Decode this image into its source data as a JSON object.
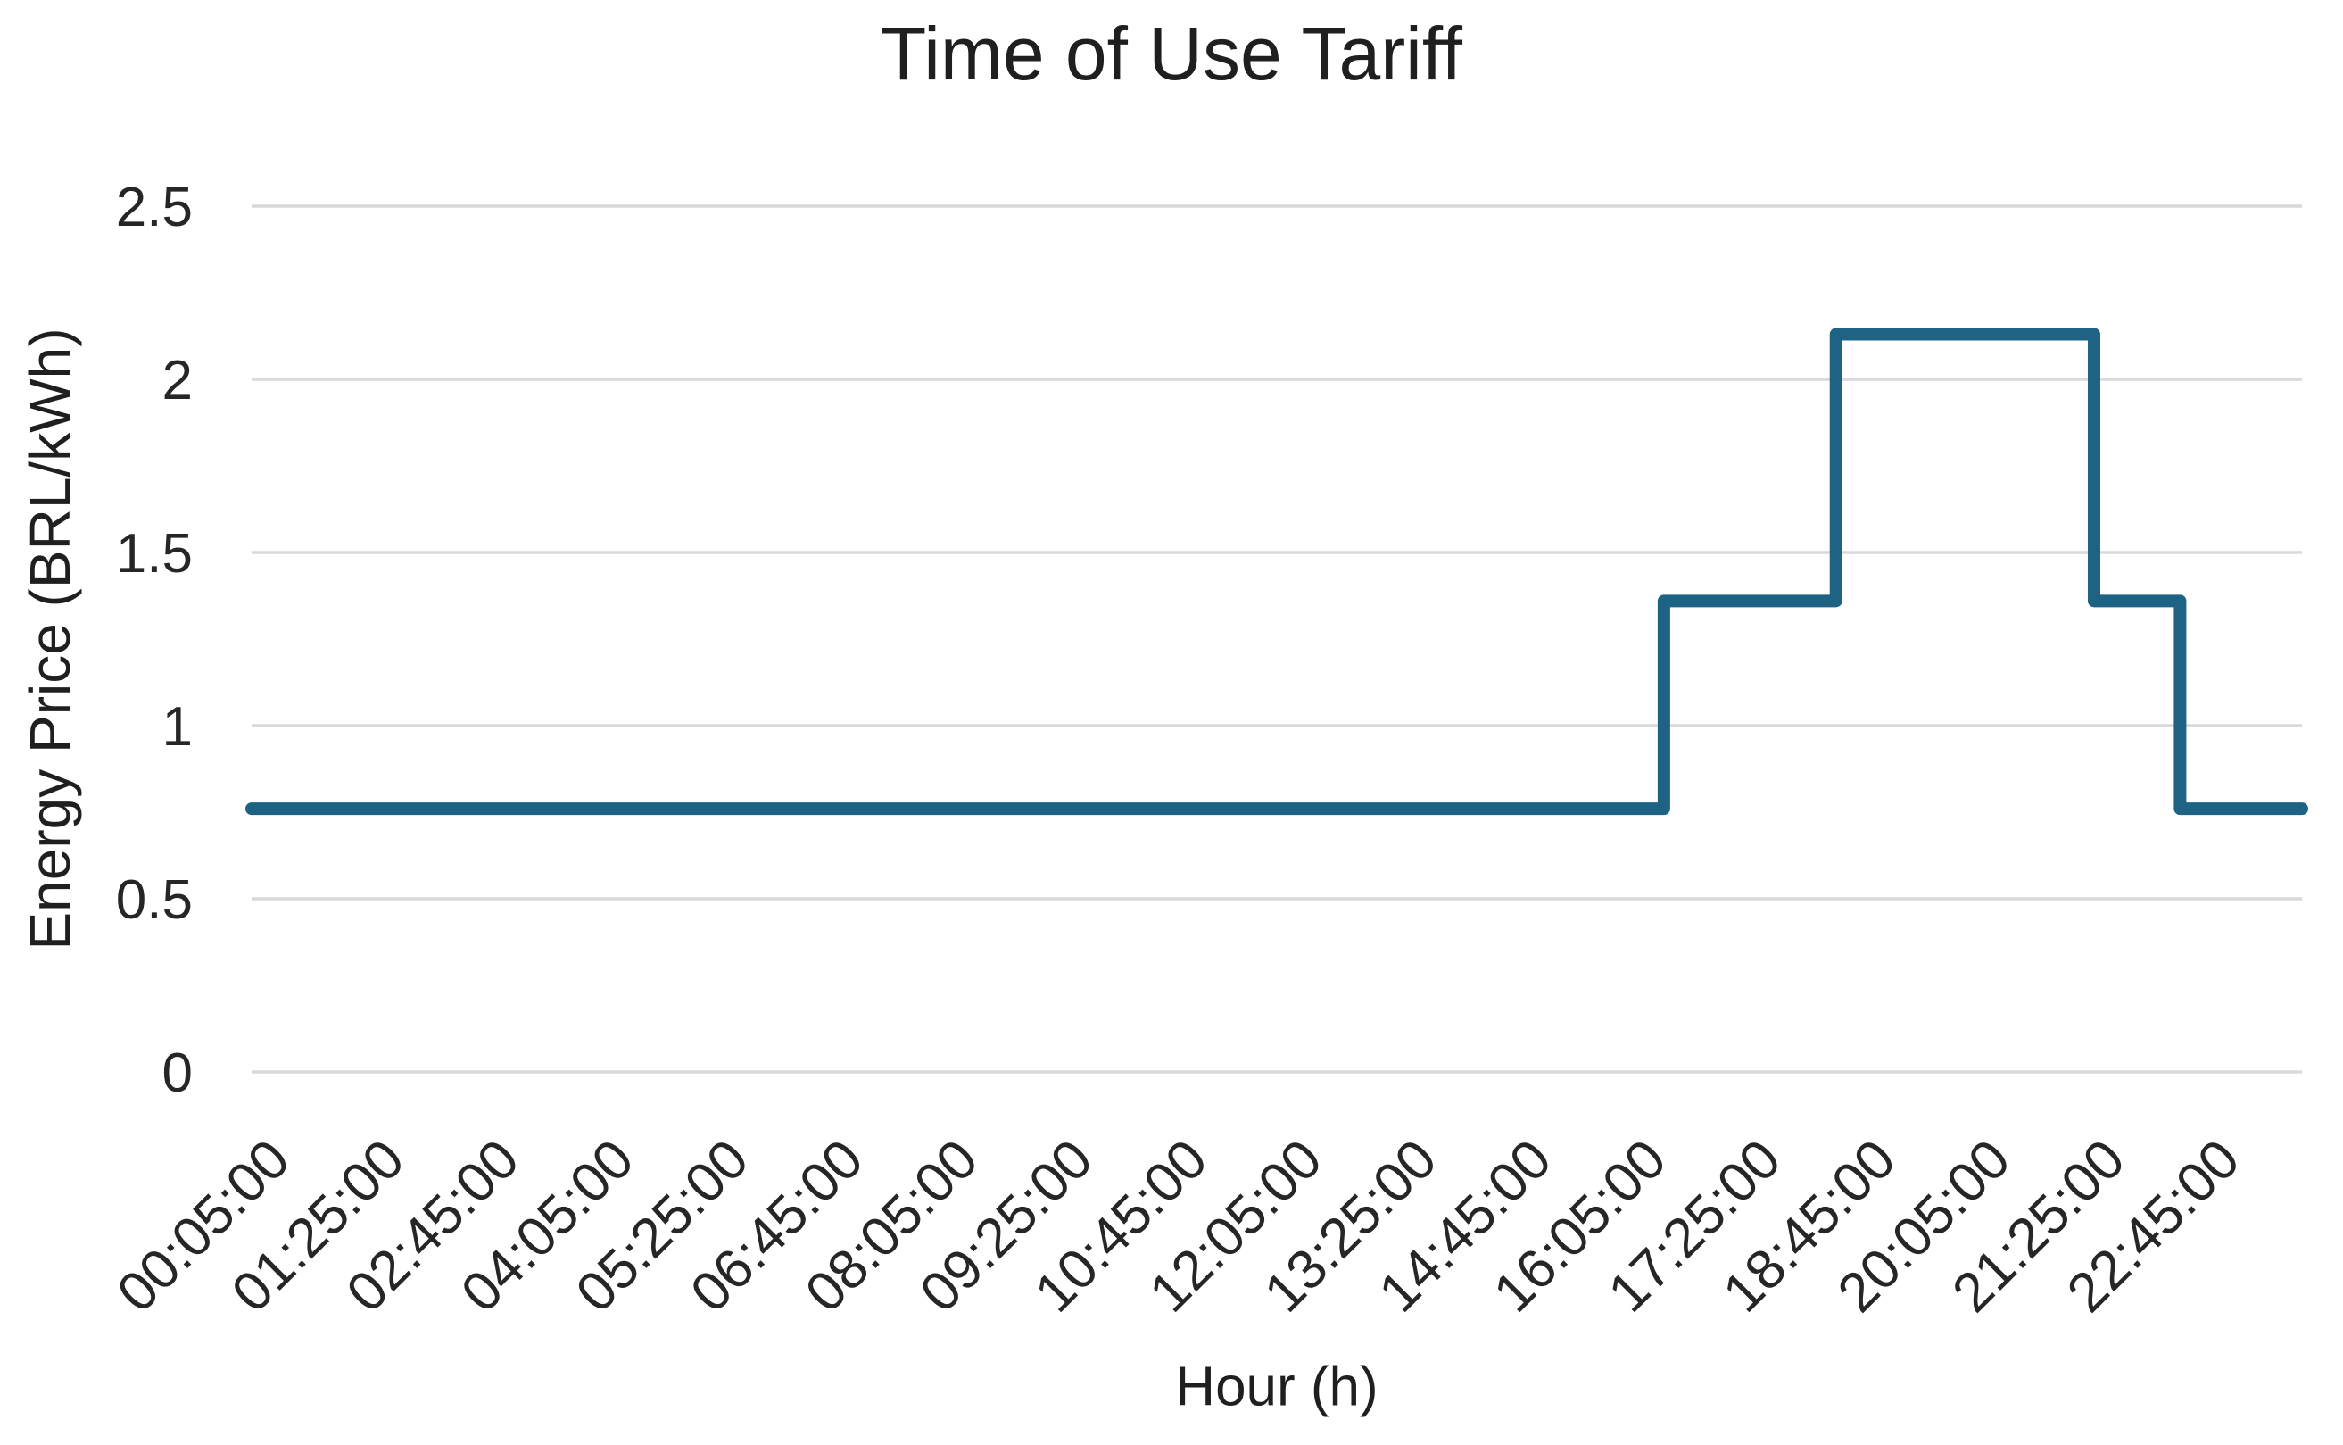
{
  "chart_data": {
    "type": "line",
    "title": "Time of Use Tariff",
    "xlabel": "Hour (h)",
    "ylabel": "Energy Price (BRL/kWh)",
    "x_tick_labels": [
      "00:05:00",
      "01:25:00",
      "02:45:00",
      "04:05:00",
      "05:25:00",
      "06:45:00",
      "08:05:00",
      "09:25:00",
      "10:45:00",
      "12:05:00",
      "13:25:00",
      "14:45:00",
      "16:05:00",
      "17:25:00",
      "18:45:00",
      "20:05:00",
      "21:25:00",
      "22:45:00"
    ],
    "x_range": {
      "start": "00:05:00",
      "end": "23:55:00",
      "sample_minutes": 5,
      "tick_interval_minutes": 80
    },
    "y_ticks": [
      "0",
      "0.5",
      "1",
      "1.5",
      "2",
      "2.5"
    ],
    "ylim": [
      0,
      2.5
    ],
    "grid": "horizontal",
    "legend": "none",
    "series": [
      {
        "name": "energy-price",
        "color": "#1e6384",
        "line_width": 14,
        "steps": [
          {
            "from": "00:05:00",
            "to": "16:30:00",
            "value": 0.76
          },
          {
            "from": "16:30:00",
            "to": "18:30:00",
            "value": 1.36
          },
          {
            "from": "18:30:00",
            "to": "21:30:00",
            "value": 2.13
          },
          {
            "from": "21:30:00",
            "to": "22:30:00",
            "value": 1.36
          },
          {
            "from": "22:30:00",
            "to": "23:55:00",
            "value": 0.76
          }
        ]
      }
    ],
    "colors": {
      "grid": "#d9d9d9",
      "text": "#262626",
      "background": "#ffffff"
    }
  }
}
